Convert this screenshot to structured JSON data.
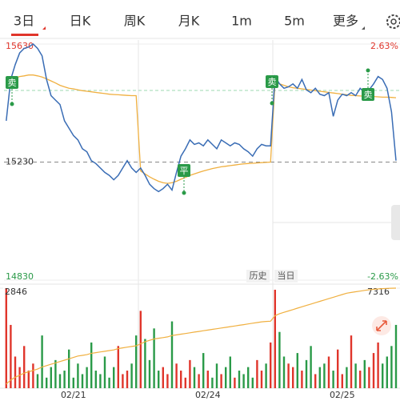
{
  "tabs": [
    "3日",
    "日K",
    "周K",
    "月K",
    "1m",
    "5m",
    "更多"
  ],
  "buttons": [
    "历史",
    "当日"
  ],
  "annotations": [
    "卖",
    "平",
    "卖",
    "卖"
  ],
  "chart_data": {
    "type": "line",
    "categories": [
      null,
      null,
      null,
      null,
      null,
      null,
      null,
      null,
      null,
      null,
      null,
      null,
      null,
      null,
      null,
      "02/21",
      null,
      null,
      null,
      null,
      null,
      null,
      null,
      null,
      null,
      null,
      null,
      null,
      null,
      null,
      null,
      null,
      null,
      null,
      null,
      null,
      null,
      null,
      null,
      null,
      null,
      null,
      null,
      null,
      null,
      "02/24",
      null,
      null,
      null,
      null,
      null,
      null,
      null,
      null,
      null,
      null,
      null,
      null,
      null,
      null,
      null,
      null,
      null,
      null,
      null,
      null,
      null,
      null,
      null,
      null,
      null,
      null,
      null,
      null,
      null,
      "02/25",
      null,
      null,
      null,
      null,
      null,
      null,
      null,
      null,
      null,
      null,
      null,
      null
    ],
    "ylim": [
      14830,
      15630
    ],
    "yticks": [
      15630,
      15230,
      14830
    ],
    "pct_lim": [
      -2.63,
      2.63
    ],
    "pct_ticks": [
      {
        "value": 2.63,
        "label": "2.63%"
      },
      {
        "value": -2.63,
        "label": "-2.63%"
      }
    ],
    "series": [
      {
        "name": "价格",
        "color": "#3a6db5",
        "values": [
          15370,
          15510,
          15560,
          15600,
          15615,
          15620,
          15630,
          15615,
          15590,
          15510,
          15455,
          15440,
          15425,
          15370,
          15345,
          15320,
          15305,
          15275,
          15265,
          15235,
          15225,
          15210,
          15195,
          15185,
          15170,
          15185,
          15210,
          15235,
          15210,
          15195,
          15210,
          15185,
          15155,
          15140,
          15130,
          15140,
          15155,
          15135,
          15195,
          15250,
          15275,
          15305,
          15290,
          15295,
          15285,
          15305,
          15290,
          15275,
          15305,
          15295,
          15285,
          15295,
          15290,
          15275,
          15265,
          15250,
          15275,
          15290,
          15285,
          15285,
          15520,
          15495,
          15480,
          15485,
          15495,
          15480,
          15510,
          15475,
          15465,
          15480,
          15460,
          15455,
          15465,
          15385,
          15440,
          15460,
          15455,
          15465,
          15455,
          15480,
          15465,
          15475,
          15495,
          15520,
          15510,
          15480,
          15400,
          15235
        ]
      },
      {
        "name": "均价",
        "color": "#f0b040",
        "values": [
          15500,
          15510,
          15515,
          15520,
          15522,
          15525,
          15525,
          15522,
          15518,
          15512,
          15505,
          15498,
          15490,
          15485,
          15480,
          15478,
          15475,
          15472,
          15470,
          15468,
          15466,
          15464,
          15462,
          15460,
          15459,
          15458,
          15457,
          15456,
          15455,
          15455,
          15200,
          15190,
          15180,
          15172,
          15165,
          15160,
          15158,
          15160,
          15165,
          15172,
          15178,
          15185,
          15190,
          15195,
          15200,
          15204,
          15208,
          15211,
          15214,
          15216,
          15218,
          15220,
          15222,
          15224,
          15225,
          15226,
          15227,
          15228,
          15229,
          15230,
          15500,
          15495,
          15490,
          15485,
          15482,
          15480,
          15478,
          15476,
          15474,
          15472,
          15470,
          15468,
          15466,
          15464,
          15462,
          15460,
          15458,
          15456,
          15455,
          15454,
          15453,
          15452,
          15452,
          15451,
          15450,
          15450,
          15449,
          15448
        ]
      }
    ],
    "volume": {
      "up_color": "#e0352b",
      "down_color": "#2a9a48",
      "ylim": [
        0,
        2846
      ],
      "yticks": [
        2846
      ],
      "values": [
        2846,
        1800,
        900,
        600,
        1200,
        500,
        700,
        400,
        1500,
        300,
        600,
        800,
        400,
        500,
        1100,
        300,
        700,
        400,
        600,
        1300,
        500,
        400,
        900,
        300,
        600,
        1200,
        400,
        500,
        700,
        1500,
        2200,
        1400,
        800,
        1700,
        500,
        600,
        400,
        1900,
        700,
        500,
        300,
        800,
        600,
        400,
        1000,
        500,
        300,
        700,
        400,
        600,
        900,
        300,
        500,
        400,
        600,
        300,
        800,
        500,
        700,
        1300,
        2800,
        1600,
        900,
        700,
        600,
        1000,
        500,
        800,
        1200,
        400,
        600,
        700,
        900,
        500,
        1100,
        400,
        600,
        1500,
        700,
        500,
        800,
        600,
        1000,
        1300,
        700,
        900,
        1200,
        1800
      ]
    },
    "turnover": {
      "color": "#f0b040",
      "y2lim": [
        0,
        7316
      ],
      "y2ticks": [
        7316
      ],
      "axis": "y2",
      "values": [
        300,
        600,
        800,
        950,
        1100,
        1200,
        1300,
        1400,
        1550,
        1650,
        1750,
        1850,
        1950,
        2050,
        2150,
        2250,
        2350,
        2400,
        2450,
        2550,
        2600,
        2650,
        2700,
        2750,
        2800,
        2900,
        2950,
        3000,
        3050,
        3100,
        3250,
        3400,
        3500,
        3600,
        3650,
        3700,
        3750,
        3850,
        3900,
        3950,
        4000,
        4050,
        4100,
        4150,
        4200,
        4250,
        4300,
        4350,
        4400,
        4450,
        4500,
        4550,
        4600,
        4650,
        4700,
        4750,
        4800,
        4850,
        4880,
        4900,
        5300,
        5450,
        5550,
        5650,
        5750,
        5850,
        5950,
        6050,
        6150,
        6250,
        6350,
        6450,
        6550,
        6650,
        6750,
        6850,
        6950,
        7000,
        7050,
        7100,
        7150,
        7200,
        7230,
        7260,
        7280,
        7300,
        7310,
        7316
      ]
    }
  }
}
